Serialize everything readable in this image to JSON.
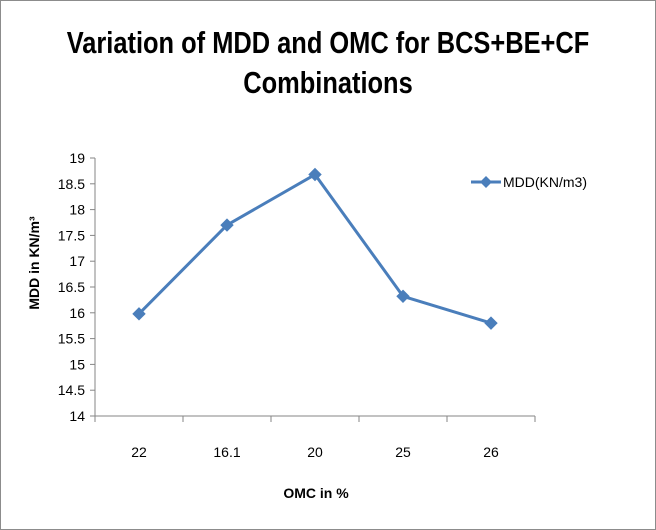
{
  "chart_data": {
    "type": "line",
    "title_line1": "Variation of MDD and OMC for BCS+BE+CF",
    "title_line2": "Combinations",
    "xlabel": "OMC in %",
    "ylabel": "MDD in KN/m³",
    "categories": [
      "22",
      "16.1",
      "20",
      "25",
      "26"
    ],
    "yticks": [
      "14",
      "14.5",
      "15",
      "15.5",
      "16",
      "16.5",
      "17",
      "17.5",
      "18",
      "18.5",
      "19"
    ],
    "ylim": [
      14,
      19
    ],
    "series": [
      {
        "name": "MDD(KN/m3)",
        "values": [
          15.98,
          17.7,
          18.68,
          16.32,
          15.8
        ]
      }
    ],
    "legend_position": "right",
    "grid": false,
    "colors": {
      "series": "#4a7ebb",
      "axis": "#868686"
    }
  }
}
